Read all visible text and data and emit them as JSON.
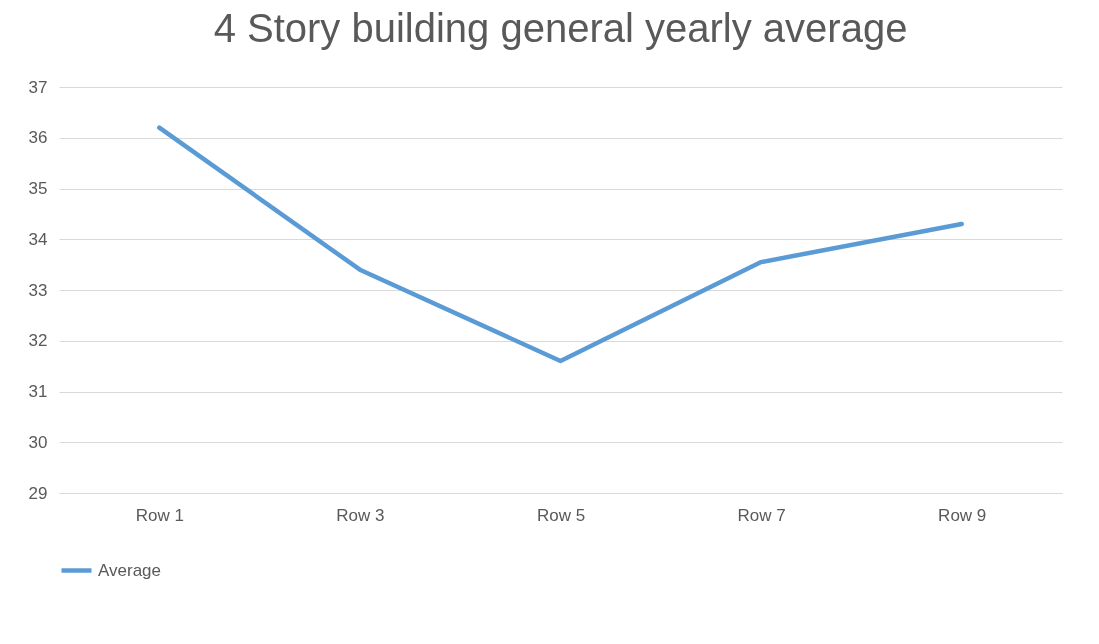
{
  "chart_data": {
    "type": "line",
    "title": "4 Story building general yearly average",
    "categories": [
      "Row 1",
      "Row 3",
      "Row 5",
      "Row 7",
      "Row 9"
    ],
    "series": [
      {
        "name": "Average",
        "color": "#5b9bd5",
        "values": [
          36.2,
          33.4,
          31.6,
          33.55,
          34.3
        ]
      }
    ],
    "ylim": [
      29,
      37
    ],
    "yticks": [
      29,
      30,
      31,
      32,
      33,
      34,
      35,
      36,
      37
    ],
    "grid": "y",
    "legend": "bottom"
  }
}
